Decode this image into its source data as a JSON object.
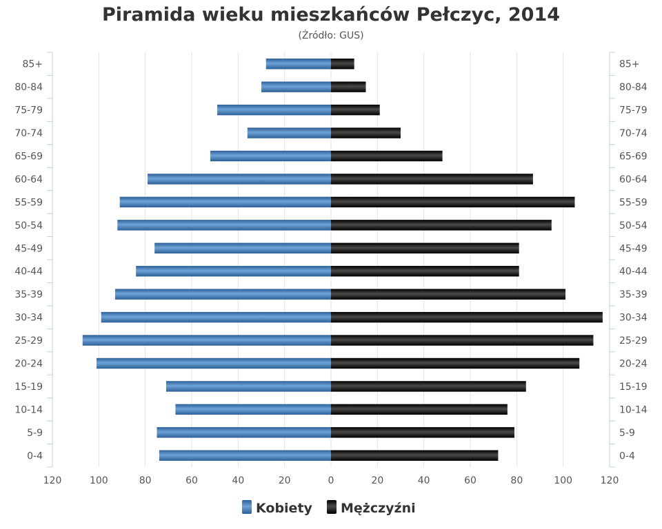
{
  "chart_data": {
    "type": "bar",
    "orientation": "horizontal",
    "title": "Piramida wieku mieszkańców Pełczyc, 2014",
    "subtitle": "(Źródło: GUS)",
    "categories": [
      "85+",
      "80-84",
      "75-79",
      "70-74",
      "65-69",
      "60-64",
      "55-59",
      "50-54",
      "45-49",
      "40-44",
      "35-39",
      "30-34",
      "25-29",
      "20-24",
      "15-19",
      "10-14",
      "5-9",
      "0-4"
    ],
    "series": [
      {
        "name": "Kobiety",
        "color": "#3a78b8",
        "values": [
          28,
          30,
          49,
          36,
          52,
          79,
          91,
          92,
          76,
          84,
          93,
          99,
          107,
          101,
          71,
          67,
          75,
          74
        ]
      },
      {
        "name": "Mężczyźni",
        "color": "#1a1a1a",
        "values": [
          10,
          15,
          21,
          30,
          48,
          87,
          105,
          95,
          81,
          81,
          101,
          117,
          113,
          107,
          84,
          76,
          79,
          72
        ]
      }
    ],
    "xlim": [
      -120,
      120
    ],
    "x_ticks": [
      "120",
      "100",
      "80",
      "60",
      "40",
      "20",
      "0",
      "20",
      "40",
      "60",
      "80",
      "100",
      "120"
    ],
    "grid": true,
    "legend_position": "bottom"
  }
}
